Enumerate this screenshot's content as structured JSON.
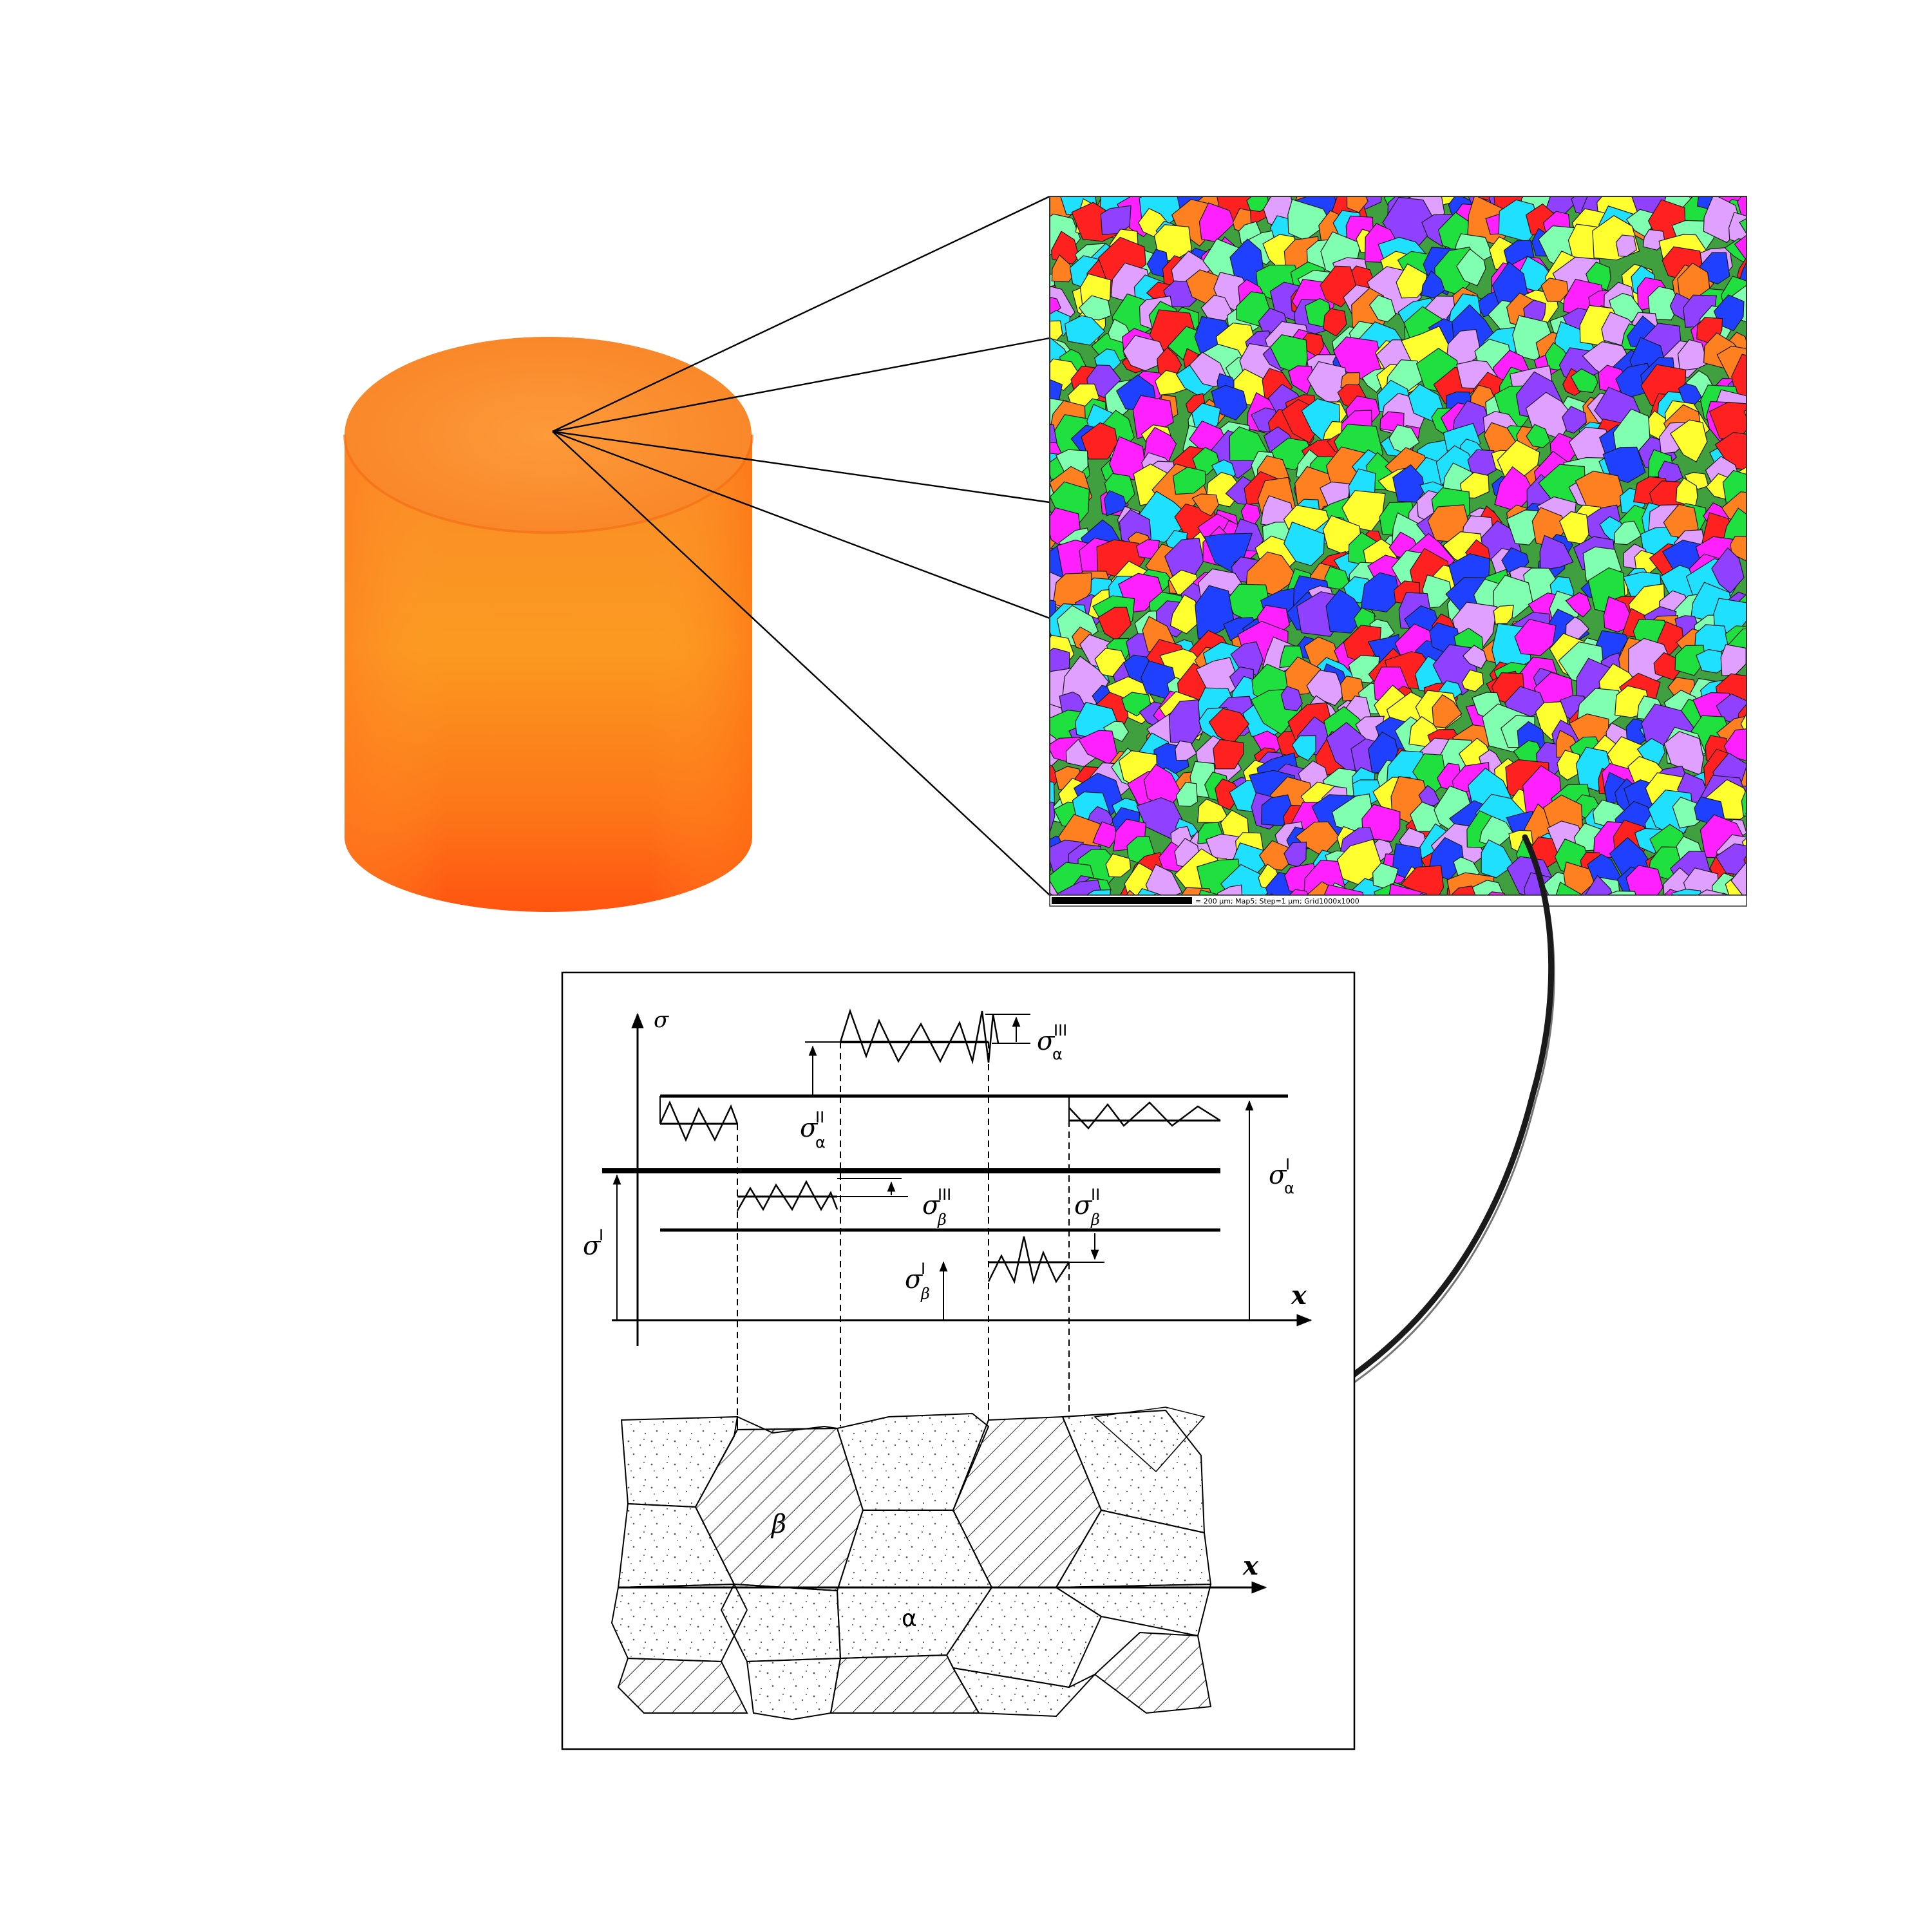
{
  "ebsd_map": {
    "caption": "= 200 µm; Map5; Step=1 µm; Grid1000x1000"
  },
  "stress_diagram": {
    "sigma_axis_label": "σ",
    "x_axis_label": "x",
    "labels": {
      "sigma_alpha_III": {
        "base": "σ",
        "sup": "III",
        "sub": "α"
      },
      "sigma_alpha_II": {
        "base": "σ",
        "sup": "II",
        "sub": "α"
      },
      "sigma_alpha_I": {
        "base": "σ",
        "sup": "I",
        "sub": "α"
      },
      "sigma_I": {
        "base": "σ",
        "sup": "I",
        "sub": ""
      },
      "sigma_beta_III": {
        "base": "σ",
        "sup": "III",
        "sub": "β"
      },
      "sigma_beta_II": {
        "base": "σ",
        "sup": "II",
        "sub": "β"
      },
      "sigma_beta_I": {
        "base": "σ",
        "sup": "I",
        "sub": "β"
      }
    }
  },
  "grain_diagram": {
    "x_axis_label": "x",
    "beta_phase_label": "β",
    "alpha_phase_label": "α"
  },
  "colors": {
    "cylinder_top": "#f98a2a",
    "cylinder_body": "#fb8d1c",
    "cylinder_bottom": "#ff5a14",
    "ebsd_palette": [
      "#ff2020",
      "#2040ff",
      "#20e040",
      "#ff20ff",
      "#20e0ff",
      "#ffff30",
      "#9040ff",
      "#ff8020",
      "#80ffb0",
      "#e0a0ff"
    ]
  }
}
